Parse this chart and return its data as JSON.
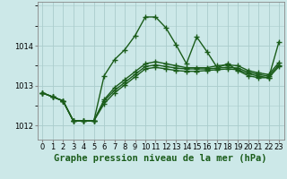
{
  "xlabel": "Graphe pression niveau de la mer (hPa)",
  "background_color": "#cce8e8",
  "grid_color": "#aacccc",
  "line_color": "#1a5c1a",
  "x": [
    0,
    1,
    2,
    3,
    4,
    5,
    6,
    7,
    8,
    9,
    10,
    11,
    12,
    13,
    14,
    15,
    16,
    17,
    18,
    19,
    20,
    21,
    22,
    23
  ],
  "series": [
    [
      1012.82,
      1012.72,
      1012.62,
      1012.12,
      1012.12,
      1012.12,
      1013.25,
      1013.65,
      1013.9,
      1014.25,
      1014.72,
      1014.72,
      1014.45,
      1014.02,
      1013.55,
      1014.22,
      1013.85,
      1013.45,
      1013.55,
      1013.38,
      1013.25,
      1013.2,
      1013.2,
      1014.1
    ],
    [
      1012.82,
      1012.72,
      1012.62,
      1012.12,
      1012.12,
      1012.12,
      1012.65,
      1012.95,
      1013.15,
      1013.35,
      1013.55,
      1013.6,
      1013.55,
      1013.5,
      1013.45,
      1013.45,
      1013.45,
      1013.5,
      1013.52,
      1013.5,
      1013.38,
      1013.32,
      1013.28,
      1013.58
    ],
    [
      1012.82,
      1012.72,
      1012.62,
      1012.12,
      1012.12,
      1012.12,
      1012.62,
      1012.88,
      1013.08,
      1013.28,
      1013.48,
      1013.52,
      1013.48,
      1013.44,
      1013.42,
      1013.42,
      1013.42,
      1013.44,
      1013.46,
      1013.44,
      1013.34,
      1013.28,
      1013.24,
      1013.52
    ],
    [
      1012.82,
      1012.72,
      1012.62,
      1012.12,
      1012.12,
      1012.12,
      1012.55,
      1012.82,
      1013.02,
      1013.22,
      1013.42,
      1013.46,
      1013.42,
      1013.38,
      1013.36,
      1013.36,
      1013.38,
      1013.4,
      1013.42,
      1013.4,
      1013.3,
      1013.24,
      1013.2,
      1013.48
    ]
  ],
  "yticks": [
    1012,
    1013,
    1014
  ],
  "ylim": [
    1011.65,
    1015.1
  ],
  "xlim": [
    -0.5,
    23.5
  ],
  "xticks": [
    0,
    1,
    2,
    3,
    4,
    5,
    6,
    7,
    8,
    9,
    10,
    11,
    12,
    13,
    14,
    15,
    16,
    17,
    18,
    19,
    20,
    21,
    22,
    23
  ],
  "xtick_labels": [
    "0",
    "1",
    "2",
    "3",
    "4",
    "5",
    "6",
    "7",
    "8",
    "9",
    "10",
    "11",
    "12",
    "13",
    "14",
    "15",
    "16",
    "17",
    "18",
    "19",
    "20",
    "21",
    "22",
    "23"
  ],
  "marker": "+",
  "markersize": 4,
  "linewidth": 1.0,
  "tick_fontsize": 6,
  "label_fontsize": 7.5
}
